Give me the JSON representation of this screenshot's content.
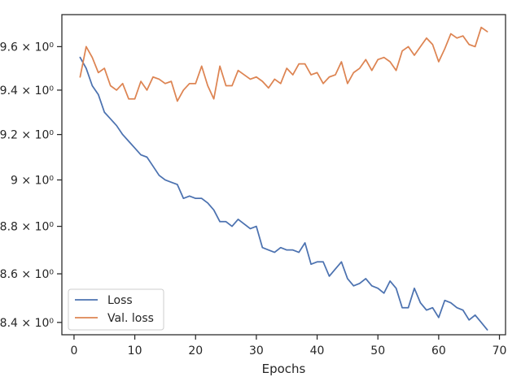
{
  "chart_data": {
    "type": "line",
    "title": "",
    "xlabel": "Epochs",
    "ylabel": "",
    "yscale": "log",
    "xlim": [
      -2,
      71
    ],
    "ylim": [
      8.35,
      9.75
    ],
    "grid": false,
    "legend_position": "lower-left",
    "x_ticks": [
      0,
      10,
      20,
      30,
      40,
      50,
      60,
      70
    ],
    "x_tick_labels": [
      "0",
      "10",
      "20",
      "30",
      "40",
      "50",
      "60",
      "70"
    ],
    "y_ticks": [
      8.4,
      8.6,
      8.8,
      9.0,
      9.2,
      9.4,
      9.6
    ],
    "y_tick_labels": [
      "8.4 × 10⁰",
      "8.6 × 10⁰",
      "8.8 × 10⁰",
      "9 × 10⁰",
      "9.2 × 10⁰",
      "9.4 × 10⁰",
      "9.6 × 10⁰"
    ],
    "x": [
      1,
      2,
      3,
      4,
      5,
      6,
      7,
      8,
      9,
      10,
      11,
      12,
      13,
      14,
      15,
      16,
      17,
      18,
      19,
      20,
      21,
      22,
      23,
      24,
      25,
      26,
      27,
      28,
      29,
      30,
      31,
      32,
      33,
      34,
      35,
      36,
      37,
      38,
      39,
      40,
      41,
      42,
      43,
      44,
      45,
      46,
      47,
      48,
      49,
      50,
      51,
      52,
      53,
      54,
      55,
      56,
      57,
      58,
      59,
      60,
      61,
      62,
      63,
      64,
      65,
      66,
      67,
      68
    ],
    "series": [
      {
        "name": "Loss",
        "color": "#4c72b0",
        "values": [
          9.55,
          9.5,
          9.42,
          9.38,
          9.3,
          9.27,
          9.24,
          9.2,
          9.17,
          9.14,
          9.11,
          9.1,
          9.06,
          9.02,
          9.0,
          8.99,
          8.98,
          8.92,
          8.93,
          8.92,
          8.92,
          8.9,
          8.87,
          8.82,
          8.82,
          8.8,
          8.83,
          8.81,
          8.79,
          8.8,
          8.71,
          8.7,
          8.69,
          8.71,
          8.7,
          8.7,
          8.69,
          8.73,
          8.64,
          8.65,
          8.65,
          8.59,
          8.62,
          8.65,
          8.58,
          8.55,
          8.56,
          8.58,
          8.55,
          8.54,
          8.52,
          8.57,
          8.54,
          8.46,
          8.46,
          8.54,
          8.48,
          8.45,
          8.46,
          8.42,
          8.49,
          8.48,
          8.46,
          8.45,
          8.41,
          8.43,
          8.4,
          8.37
        ]
      },
      {
        "name": "Val. loss",
        "color": "#dd8452",
        "values": [
          9.46,
          9.6,
          9.55,
          9.48,
          9.5,
          9.42,
          9.4,
          9.43,
          9.36,
          9.36,
          9.44,
          9.4,
          9.46,
          9.45,
          9.43,
          9.44,
          9.35,
          9.4,
          9.43,
          9.43,
          9.51,
          9.42,
          9.36,
          9.51,
          9.42,
          9.42,
          9.49,
          9.47,
          9.45,
          9.46,
          9.44,
          9.41,
          9.45,
          9.43,
          9.5,
          9.47,
          9.52,
          9.52,
          9.47,
          9.48,
          9.43,
          9.46,
          9.47,
          9.53,
          9.43,
          9.48,
          9.5,
          9.54,
          9.49,
          9.54,
          9.55,
          9.53,
          9.49,
          9.58,
          9.6,
          9.56,
          9.6,
          9.64,
          9.61,
          9.53,
          9.59,
          9.66,
          9.64,
          9.65,
          9.61,
          9.6,
          9.69,
          9.67
        ]
      }
    ]
  }
}
